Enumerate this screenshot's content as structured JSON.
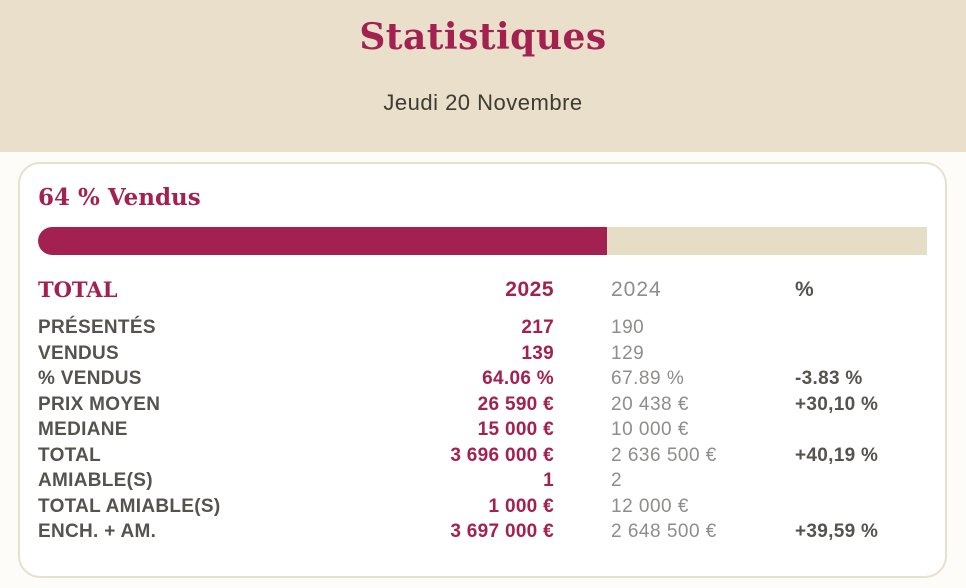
{
  "colors": {
    "accent": "#a32150",
    "beige_header": "#e9dfcb",
    "progress_track": "#e6ddc7",
    "label_dark": "#55534e",
    "value_gray": "#8e8d8b",
    "card_border": "#e8e0cc"
  },
  "header": {
    "title": "Statistiques",
    "date": "Jeudi 20 Novembre"
  },
  "card": {
    "heading": "64 % Vendus",
    "progress": {
      "percent": 64
    },
    "table": {
      "columns": {
        "label": "TOTAL",
        "y2025": "2025",
        "y2024": "2024",
        "pct": "%"
      },
      "rows": [
        {
          "label": "PRÉSENTÉS",
          "y2025": "217",
          "y2024": "190",
          "pct": ""
        },
        {
          "label": "VENDUS",
          "y2025": "139",
          "y2024": "129",
          "pct": ""
        },
        {
          "label": "% VENDUS",
          "y2025": "64.06 %",
          "y2024": "67.89 %",
          "pct": "-3.83 %"
        },
        {
          "label": "PRIX MOYEN",
          "y2025": "26 590 €",
          "y2024": "20 438 €",
          "pct": "+30,10 %"
        },
        {
          "label": "MEDIANE",
          "y2025": "15 000 €",
          "y2024": "10 000 €",
          "pct": ""
        },
        {
          "label": "TOTAL",
          "y2025": "3 696 000 €",
          "y2024": "2 636 500 €",
          "pct": "+40,19 %"
        },
        {
          "label": "AMIABLE(S)",
          "y2025": "1",
          "y2024": "2",
          "pct": ""
        },
        {
          "label": "TOTAL AMIABLE(S)",
          "y2025": "1 000 €",
          "y2024": "12 000 €",
          "pct": ""
        },
        {
          "label": "ENCH. + AM.",
          "y2025": "3 697 000 €",
          "y2024": "2 648 500 €",
          "pct": "+39,59 %"
        }
      ]
    }
  }
}
